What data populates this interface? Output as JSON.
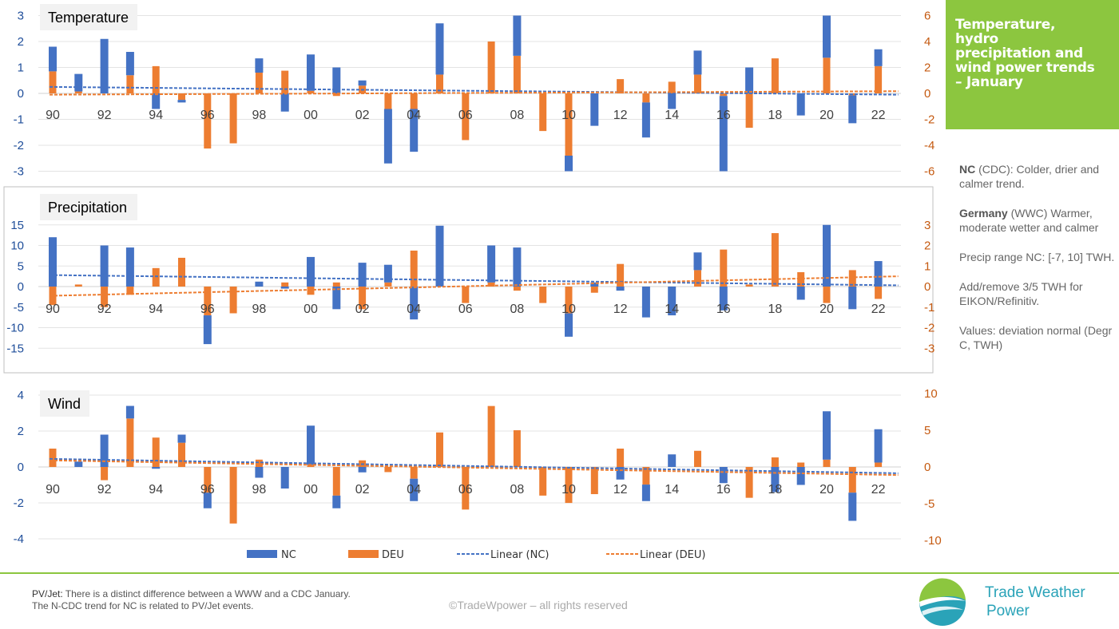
{
  "title": "Temperature,\nhydro\nprecipitation and\nwind power trends\n– January",
  "notes": {
    "nc_bold": "NC",
    "nc_text": " (CDC): Colder, drier and calmer trend.",
    "de_bold": "Germany",
    "de_text": " (WWC) Warmer, moderate wetter and calmer",
    "precip_range": "Precip range NC: [-7, 10] TWH.",
    "eikon": "Add/remove 3/5 TWH for EIKON/Refinitiv.",
    "values": "Values: deviation normal (Degr C, TWH)"
  },
  "footer": {
    "pvjet_bold": "PV/Jet:",
    "pvjet_text": " There is a distinct difference between a WWW and a CDC January.",
    "pvjet_text2": "The N-CDC trend for NC is related to PV/Jet events.",
    "copyright": "©TradeWpower – all rights reserved",
    "brand_line1": "Trade Weather",
    "brand_line2": "Power"
  },
  "colors": {
    "nc": "#4472c4",
    "deu": "#ed7d31",
    "accent": "#8cc63f",
    "brand": "#2aa3b8"
  },
  "legend": {
    "nc": "NC",
    "deu": "DEU",
    "lin_nc": "Linear (NC)",
    "lin_deu": "Linear (DEU)"
  },
  "chart_data": [
    {
      "type": "bar",
      "title": "Temperature",
      "x": [
        90,
        91,
        92,
        93,
        94,
        95,
        96,
        97,
        98,
        99,
        100,
        101,
        102,
        103,
        104,
        105,
        106,
        107,
        108,
        109,
        110,
        111,
        112,
        113,
        114,
        115,
        116,
        117,
        118,
        119,
        120,
        121,
        122
      ],
      "tick_labels": [
        "90",
        "92",
        "94",
        "96",
        "98",
        "00",
        "02",
        "04",
        "06",
        "08",
        "10",
        "12",
        "14",
        "16",
        "18",
        "20",
        "22"
      ],
      "y_left_ticks": [
        -3,
        -2,
        -1,
        0,
        1,
        2,
        3
      ],
      "y_right_ticks": [
        -6,
        -4,
        -2,
        0,
        2,
        4,
        6
      ],
      "ylim_left": [
        -3,
        3
      ],
      "ylim_right": [
        -6,
        6
      ],
      "series": [
        {
          "name": "NC",
          "axis": "left",
          "values": [
            1.8,
            0.75,
            2.1,
            1.6,
            -0.6,
            -0.35,
            0,
            0,
            1.35,
            -0.7,
            1.5,
            1.0,
            0.5,
            -2.7,
            -2.25,
            2.7,
            0,
            0,
            3.0,
            0,
            -3.0,
            -1.25,
            0,
            -1.7,
            -0.6,
            1.65,
            -3.0,
            1.0,
            0,
            -0.85,
            3.0,
            -1.15,
            1.7
          ]
        },
        {
          "name": "DEU",
          "axis": "right",
          "values": [
            1.7,
            0.15,
            0,
            1.4,
            2.1,
            -0.5,
            -4.25,
            -3.85,
            1.6,
            1.75,
            0.2,
            -0.2,
            0.6,
            -1.2,
            -1.2,
            1.45,
            -3.6,
            4.0,
            2.9,
            -2.9,
            -4.8,
            0,
            1.1,
            -0.7,
            0.9,
            1.45,
            -0.2,
            -2.65,
            2.7,
            0,
            2.75,
            -0.15,
            2.1
          ]
        }
      ],
      "trend": {
        "NC": [
          0.25,
          -0.05
        ],
        "DEU": [
          -0.1,
          0.17
        ]
      }
    },
    {
      "type": "bar",
      "title": "Precipitation",
      "x": [
        90,
        91,
        92,
        93,
        94,
        95,
        96,
        97,
        98,
        99,
        100,
        101,
        102,
        103,
        104,
        105,
        106,
        107,
        108,
        109,
        110,
        111,
        112,
        113,
        114,
        115,
        116,
        117,
        118,
        119,
        120,
        121,
        122
      ],
      "tick_labels": [
        "90",
        "92",
        "94",
        "96",
        "98",
        "00",
        "02",
        "04",
        "06",
        "08",
        "10",
        "12",
        "14",
        "16",
        "18",
        "20",
        "22"
      ],
      "y_left_ticks": [
        -15,
        -10,
        -5,
        0,
        5,
        10,
        15
      ],
      "y_right_ticks": [
        -3,
        -2,
        -1,
        0,
        1,
        2,
        3
      ],
      "ylim_left": [
        -18,
        15.5
      ],
      "ylim_right": [
        -3.6,
        3.1
      ],
      "series": [
        {
          "name": "NC",
          "axis": "left",
          "values": [
            12,
            0.5,
            10,
            9.5,
            0,
            0,
            -14,
            0,
            1.2,
            -0.5,
            7.2,
            -5.5,
            5.8,
            5.3,
            -8,
            14.8,
            0,
            10,
            9.5,
            0,
            -12.2,
            1,
            -1,
            -7.5,
            -7,
            8.3,
            -5.8,
            0,
            0,
            -3.2,
            15,
            -5.5,
            6.2
          ]
        },
        {
          "name": "DEU",
          "axis": "right",
          "values": [
            -0.9,
            0.1,
            -1.0,
            -0.4,
            0.9,
            1.4,
            -1.4,
            -1.3,
            0,
            0.2,
            -0.4,
            0.2,
            -1.1,
            0.2,
            1.75,
            0,
            -0.8,
            0.2,
            -0.2,
            -0.8,
            -1.3,
            -0.3,
            1.1,
            0,
            0,
            0.8,
            1.8,
            0.1,
            2.6,
            0.7,
            -0.8,
            0.8,
            -0.6
          ]
        }
      ],
      "trend": {
        "NC": [
          2.8,
          0.3
        ],
        "DEU": [
          -0.45,
          0.5
        ]
      }
    },
    {
      "type": "bar",
      "title": "Wind",
      "x": [
        90,
        91,
        92,
        93,
        94,
        95,
        96,
        97,
        98,
        99,
        100,
        101,
        102,
        103,
        104,
        105,
        106,
        107,
        108,
        109,
        110,
        111,
        112,
        113,
        114,
        115,
        116,
        117,
        118,
        119,
        120,
        121,
        122
      ],
      "tick_labels": [
        "90",
        "92",
        "94",
        "96",
        "98",
        "00",
        "02",
        "04",
        "06",
        "08",
        "10",
        "12",
        "14",
        "16",
        "18",
        "20",
        "22"
      ],
      "y_left_ticks": [
        -4,
        -2,
        0,
        2,
        4
      ],
      "y_right_ticks": [
        -10,
        -5,
        0,
        5,
        10
      ],
      "ylim_left": [
        -4,
        4
      ],
      "ylim_right": [
        -10,
        10
      ],
      "series": [
        {
          "name": "NC",
          "axis": "left",
          "values": [
            0,
            0.3,
            1.8,
            3.4,
            -0.1,
            1.8,
            -2.3,
            0,
            -0.6,
            -1.2,
            2.3,
            -2.3,
            -0.3,
            0,
            -1.9,
            0,
            0,
            0,
            0,
            0,
            0,
            0,
            -0.7,
            -1.9,
            0.7,
            0,
            -0.9,
            0,
            -1.4,
            -1.0,
            3.1,
            -3.0,
            2.1
          ]
        },
        {
          "name": "DEU",
          "axis": "right",
          "values": [
            2.5,
            0,
            -1.8,
            6.6,
            4.0,
            3.3,
            -3.5,
            -7.7,
            1.0,
            0,
            0.3,
            -3.9,
            0.9,
            -0.7,
            -1.6,
            4.7,
            -5.8,
            8.3,
            5.0,
            -3.9,
            -4.9,
            -3.7,
            2.5,
            -2.4,
            0,
            2.2,
            0,
            -4.2,
            1.3,
            0.6,
            1.0,
            -3.5,
            0.6
          ]
        }
      ],
      "trend": {
        "NC": [
          0.45,
          -0.35
        ],
        "DEU": [
          0.9,
          -1.1
        ]
      }
    }
  ]
}
